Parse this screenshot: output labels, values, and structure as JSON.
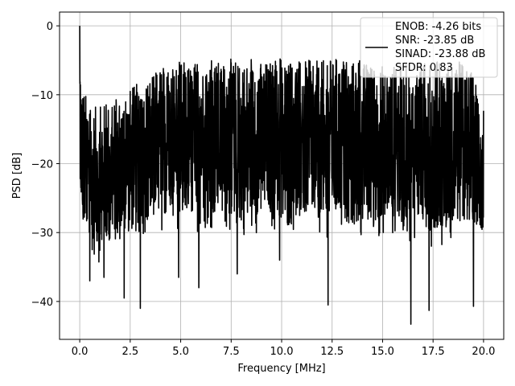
{
  "chart_data": {
    "type": "line",
    "title": "",
    "xlabel": "Frequency [MHz]",
    "ylabel": "PSD [dB]",
    "xlim": [
      -1.0,
      21.0
    ],
    "ylim": [
      -45.5,
      2.0
    ],
    "xticks": [
      0.0,
      2.5,
      5.0,
      7.5,
      10.0,
      12.5,
      15.0,
      17.5,
      20.0
    ],
    "xtick_labels": [
      "0.0",
      "2.5",
      "5.0",
      "7.5",
      "10.0",
      "12.5",
      "15.0",
      "17.5",
      "20.0"
    ],
    "yticks": [
      0,
      -10,
      -20,
      -30,
      -40
    ],
    "ytick_labels": [
      "0",
      "−10",
      "−20",
      "−30",
      "−40"
    ],
    "grid": true,
    "legend_position": "top-right",
    "legend_lines": [
      "ENOB: -4.26 bits",
      "SNR: -23.85 dB",
      "SINAD: -23.88 dB",
      "SFDR: 0.83"
    ],
    "series": [
      {
        "color": "#000000",
        "x_range": [
          0.0,
          20.0
        ],
        "upper_envelope": [
          [
            0.0,
            0.0
          ],
          [
            0.1,
            -7.5
          ],
          [
            0.5,
            -12
          ],
          [
            1.0,
            -11.5
          ],
          [
            2.0,
            -10
          ],
          [
            3.0,
            -8
          ],
          [
            4.0,
            -6
          ],
          [
            5.0,
            -5
          ],
          [
            6.0,
            -5
          ],
          [
            7.0,
            -5
          ],
          [
            8.0,
            -4.5
          ],
          [
            9.0,
            -5
          ],
          [
            10.0,
            -4.5
          ],
          [
            11.0,
            -5
          ],
          [
            12.0,
            -5
          ],
          [
            13.0,
            -4.5
          ],
          [
            14.0,
            -5
          ],
          [
            15.0,
            -5.5
          ],
          [
            16.0,
            -5.5
          ],
          [
            17.0,
            -5
          ],
          [
            18.0,
            -5
          ],
          [
            19.0,
            -5
          ],
          [
            20.0,
            -9
          ]
        ],
        "lower_envelope": [
          [
            0.0,
            -22
          ],
          [
            0.1,
            -32
          ],
          [
            0.5,
            -33
          ],
          [
            1.0,
            -35
          ],
          [
            2.0,
            -32
          ],
          [
            3.0,
            -31
          ],
          [
            4.0,
            -30
          ],
          [
            5.0,
            -30
          ],
          [
            6.0,
            -30
          ],
          [
            7.0,
            -30
          ],
          [
            8.0,
            -31
          ],
          [
            9.0,
            -30
          ],
          [
            10.0,
            -31
          ],
          [
            11.0,
            -30
          ],
          [
            12.0,
            -31
          ],
          [
            13.0,
            -31
          ],
          [
            14.0,
            -32
          ],
          [
            15.0,
            -31
          ],
          [
            16.0,
            -31
          ],
          [
            17.0,
            -32
          ],
          [
            18.0,
            -32
          ],
          [
            19.0,
            -31
          ],
          [
            20.0,
            -32
          ]
        ],
        "dips": [
          [
            0.5,
            -37
          ],
          [
            1.2,
            -36.5
          ],
          [
            2.2,
            -39.5
          ],
          [
            3.0,
            -41
          ],
          [
            4.9,
            -36.5
          ],
          [
            5.9,
            -38
          ],
          [
            7.8,
            -36
          ],
          [
            9.9,
            -34
          ],
          [
            12.3,
            -40.5
          ],
          [
            16.4,
            -43.3
          ],
          [
            17.3,
            -41.3
          ],
          [
            19.5,
            -40.7
          ]
        ]
      }
    ]
  }
}
